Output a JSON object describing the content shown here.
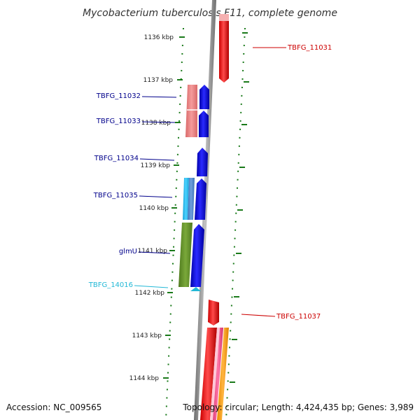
{
  "title": "Mycobacterium tuberculosis F11, complete genome",
  "footer": {
    "accession": "Accession: NC_009565",
    "topology": "Topology: circular; Length: 4,424,435 bp; Genes: 3,989"
  },
  "colors": {
    "backbone": "#8a8a8a",
    "ticks": "#1a7a1a",
    "forward_label": "#cc0000",
    "reverse_label": "#00008b",
    "cyan_label": "#22b8d6"
  },
  "kbp_ticks": [
    "1136 kbp",
    "1137 kbp",
    "1138 kbp",
    "1139 kbp",
    "1140 kbp",
    "1141 kbp",
    "1142 kbp",
    "1143 kbp",
    "1144 kbp"
  ],
  "gene_labels": [
    {
      "text": "TBFG_11031",
      "color": "#cc0000"
    },
    {
      "text": "TBFG_11032",
      "color": "#00008b"
    },
    {
      "text": "TBFG_11033",
      "color": "#00008b"
    },
    {
      "text": "TBFG_11034",
      "color": "#00008b"
    },
    {
      "text": "TBFG_11035",
      "color": "#00008b"
    },
    {
      "text": "glmU",
      "color": "#00008b"
    },
    {
      "text": "TBFG_14016",
      "color": "#22b8d6"
    },
    {
      "text": "TBFG_11037",
      "color": "#cc0000"
    }
  ]
}
